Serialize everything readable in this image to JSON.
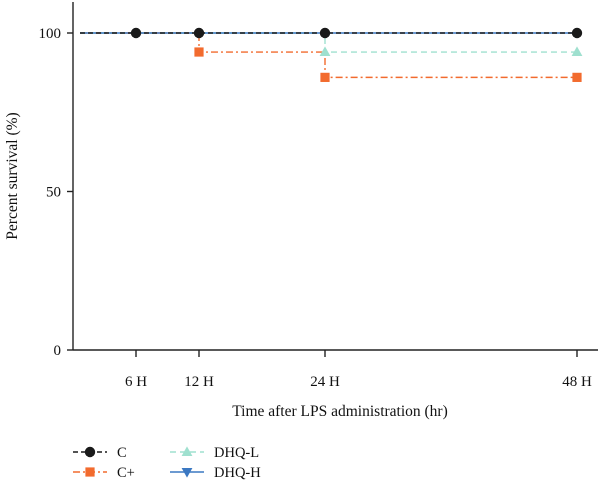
{
  "chart_data": {
    "type": "line",
    "step": true,
    "xlabel": "Time after LPS administration (hr)",
    "ylabel": "Percent survival (%)",
    "x": [
      6,
      12,
      24,
      48
    ],
    "x_tick_labels": [
      "6 H",
      "12 H",
      "24 H",
      "48 H"
    ],
    "xlim": [
      0,
      48
    ],
    "ylim": [
      0,
      100
    ],
    "y_ticks": [
      0,
      50,
      100
    ],
    "y_tick_labels": [
      "0",
      "50",
      "100"
    ],
    "series": [
      {
        "name": "C",
        "color": "#1a1a1a",
        "marker": "circle",
        "dash": "dash",
        "values": [
          100,
          100,
          100,
          100
        ]
      },
      {
        "name": "C+",
        "color": "#f26b2e",
        "marker": "square",
        "dash": "dashdot",
        "values": [
          100,
          94,
          86,
          86
        ]
      },
      {
        "name": "DHQ-L",
        "color": "#9fe0cf",
        "marker": "triangle-up",
        "dash": "longdash",
        "values": [
          100,
          100,
          94,
          94
        ]
      },
      {
        "name": "DHQ-H",
        "color": "#3b78c2",
        "marker": "triangle-down",
        "dash": "solid",
        "values": [
          100,
          100,
          100,
          100
        ]
      }
    ],
    "legend_position": "bottom-left",
    "grid": false
  }
}
